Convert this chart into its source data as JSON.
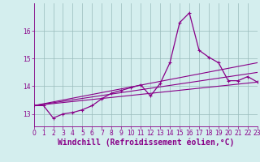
{
  "x_values": [
    0,
    1,
    2,
    3,
    4,
    5,
    6,
    7,
    8,
    9,
    10,
    11,
    12,
    13,
    14,
    15,
    16,
    17,
    18,
    19,
    20,
    21,
    22,
    23
  ],
  "line_main": [
    13.3,
    13.3,
    12.85,
    13.0,
    13.05,
    13.15,
    13.3,
    13.55,
    13.75,
    13.85,
    13.95,
    14.05,
    13.65,
    14.1,
    14.85,
    16.3,
    16.65,
    15.3,
    15.05,
    14.85,
    14.2,
    14.2,
    14.35,
    14.15
  ],
  "trend_lines": [
    [
      13.3,
      14.85
    ],
    [
      13.3,
      14.5
    ],
    [
      13.3,
      14.15
    ]
  ],
  "ylim": [
    12.55,
    17.0
  ],
  "xlim": [
    0,
    23
  ],
  "yticks": [
    13,
    14,
    15,
    16
  ],
  "xticks": [
    0,
    1,
    2,
    3,
    4,
    5,
    6,
    7,
    8,
    9,
    10,
    11,
    12,
    13,
    14,
    15,
    16,
    17,
    18,
    19,
    20,
    21,
    22,
    23
  ],
  "xlabel": "Windchill (Refroidissement éolien,°C)",
  "bg_color": "#d4eeee",
  "line_color": "#880088",
  "grid_color": "#99bbbb",
  "tick_fontsize": 5.5,
  "xlabel_fontsize": 7.0,
  "marker_size": 2.5
}
